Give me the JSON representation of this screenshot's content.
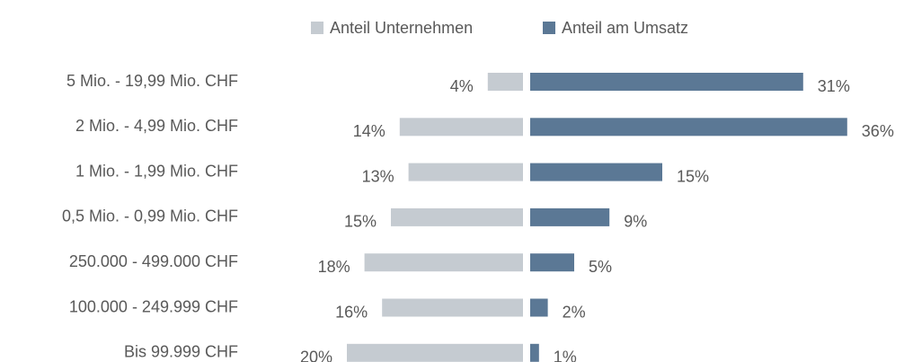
{
  "chart_data": {
    "type": "butterfly-bar",
    "categories": [
      "5 Mio. - 19,99 Mio. CHF",
      "2 Mio. - 4,99 Mio. CHF",
      "1 Mio. - 1,99 Mio. CHF",
      "0,5 Mio. - 0,99 Mio. CHF",
      "250.000 - 499.000 CHF",
      "100.000 - 249.999 CHF",
      "Bis 99.999 CHF"
    ],
    "series": [
      {
        "name": "Anteil Unternehmen",
        "color": "#c5cbd1",
        "values": [
          4,
          14,
          13,
          15,
          18,
          16,
          20
        ],
        "value_labels": [
          "4%",
          "14%",
          "13%",
          "15%",
          "18%",
          "16%",
          "20%"
        ]
      },
      {
        "name": "Anteil am Umsatz",
        "color": "#5b7895",
        "values": [
          31,
          36,
          15,
          9,
          5,
          2,
          1
        ],
        "value_labels": [
          "31%",
          "36%",
          "15%",
          "9%",
          "5%",
          "2%",
          "1%"
        ]
      }
    ],
    "legend": "top"
  }
}
